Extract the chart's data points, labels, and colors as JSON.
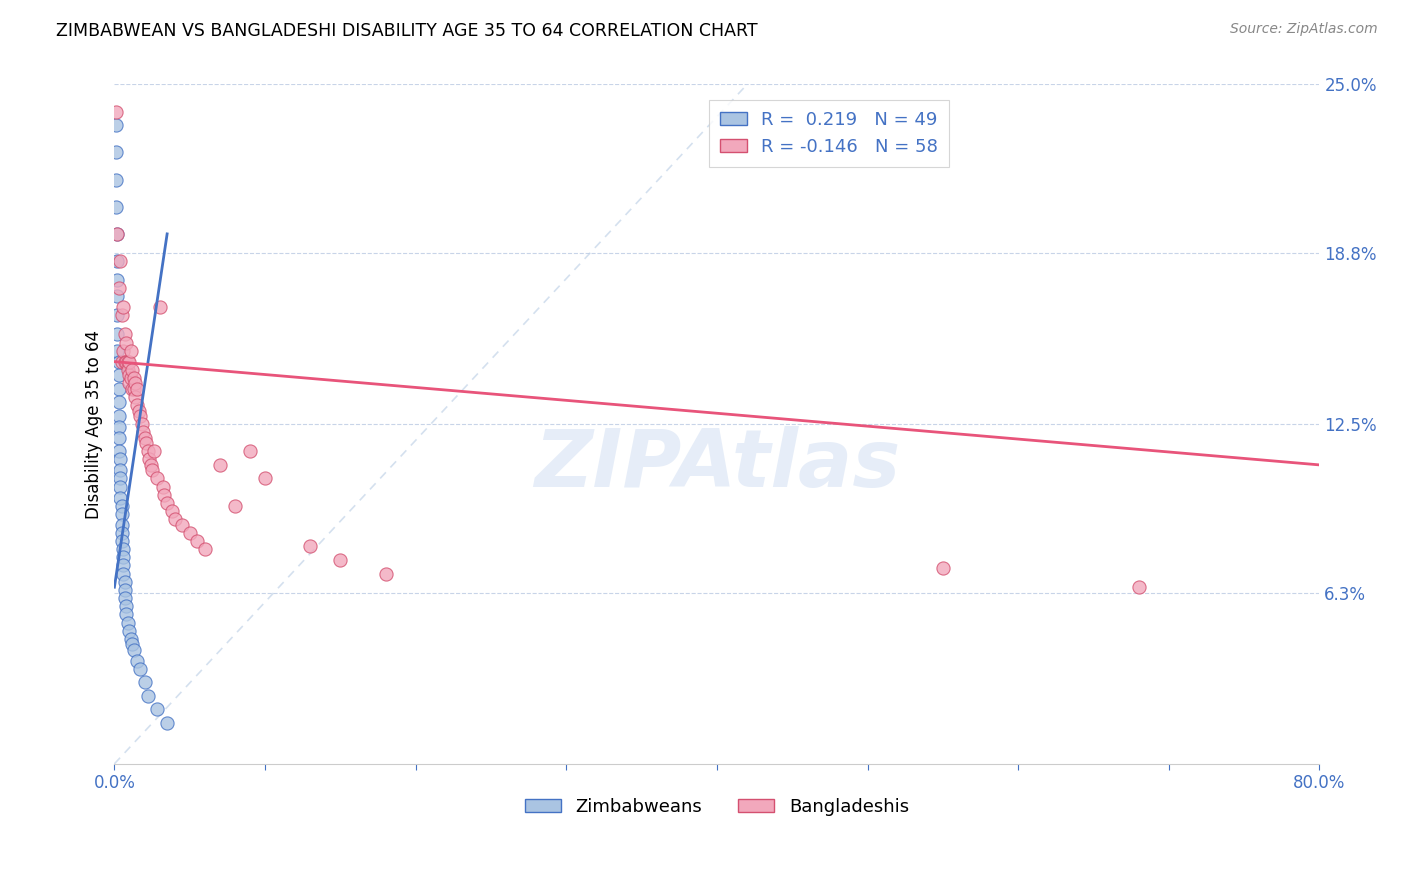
{
  "title": "ZIMBABWEAN VS BANGLADESHI DISABILITY AGE 35 TO 64 CORRELATION CHART",
  "source": "Source: ZipAtlas.com",
  "ylabel": "Disability Age 35 to 64",
  "xlim": [
    0.0,
    0.8
  ],
  "ylim": [
    0.0,
    0.25
  ],
  "ytick_labels": [
    "6.3%",
    "12.5%",
    "18.8%",
    "25.0%"
  ],
  "ytick_values": [
    0.063,
    0.125,
    0.188,
    0.25
  ],
  "xtick_values": [
    0.0,
    0.1,
    0.2,
    0.3,
    0.4,
    0.5,
    0.6,
    0.7,
    0.8
  ],
  "xtick_labels": [
    "0.0%",
    "",
    "",
    "",
    "",
    "",
    "",
    "",
    "80.0%"
  ],
  "legend_r1": "R =  0.219",
  "legend_n1": "N = 49",
  "legend_r2": "R = -0.146",
  "legend_n2": "N = 58",
  "color_zimbabwean": "#aac4e2",
  "color_bangladeshi": "#f2a8bc",
  "color_line_zimbabwean": "#4472c4",
  "color_line_bangladeshi": "#e8547a",
  "color_diagonal": "#b8cce4",
  "background_color": "#ffffff",
  "grid_color": "#c8d4e8",
  "zimbabwean_x": [
    0.001,
    0.001,
    0.001,
    0.001,
    0.002,
    0.002,
    0.002,
    0.002,
    0.002,
    0.002,
    0.002,
    0.003,
    0.003,
    0.003,
    0.003,
    0.003,
    0.003,
    0.003,
    0.003,
    0.004,
    0.004,
    0.004,
    0.004,
    0.004,
    0.005,
    0.005,
    0.005,
    0.005,
    0.005,
    0.006,
    0.006,
    0.006,
    0.006,
    0.007,
    0.007,
    0.007,
    0.008,
    0.008,
    0.009,
    0.01,
    0.011,
    0.012,
    0.013,
    0.015,
    0.017,
    0.02,
    0.022,
    0.028,
    0.035
  ],
  "zimbabwean_y": [
    0.235,
    0.225,
    0.215,
    0.205,
    0.195,
    0.185,
    0.178,
    0.172,
    0.165,
    0.158,
    0.152,
    0.148,
    0.143,
    0.138,
    0.133,
    0.128,
    0.124,
    0.12,
    0.115,
    0.112,
    0.108,
    0.105,
    0.102,
    0.098,
    0.095,
    0.092,
    0.088,
    0.085,
    0.082,
    0.079,
    0.076,
    0.073,
    0.07,
    0.067,
    0.064,
    0.061,
    0.058,
    0.055,
    0.052,
    0.049,
    0.046,
    0.044,
    0.042,
    0.038,
    0.035,
    0.03,
    0.025,
    0.02,
    0.015
  ],
  "bangladeshi_x": [
    0.001,
    0.002,
    0.003,
    0.004,
    0.005,
    0.005,
    0.006,
    0.006,
    0.007,
    0.007,
    0.008,
    0.008,
    0.009,
    0.009,
    0.01,
    0.01,
    0.01,
    0.011,
    0.011,
    0.012,
    0.012,
    0.013,
    0.013,
    0.014,
    0.014,
    0.015,
    0.015,
    0.016,
    0.017,
    0.018,
    0.019,
    0.02,
    0.021,
    0.022,
    0.023,
    0.024,
    0.025,
    0.026,
    0.028,
    0.03,
    0.032,
    0.033,
    0.035,
    0.038,
    0.04,
    0.045,
    0.05,
    0.055,
    0.06,
    0.07,
    0.08,
    0.09,
    0.1,
    0.13,
    0.15,
    0.18,
    0.55,
    0.68
  ],
  "bangladeshi_y": [
    0.24,
    0.195,
    0.175,
    0.185,
    0.148,
    0.165,
    0.152,
    0.168,
    0.148,
    0.158,
    0.148,
    0.155,
    0.148,
    0.145,
    0.143,
    0.148,
    0.14,
    0.142,
    0.152,
    0.138,
    0.145,
    0.138,
    0.142,
    0.135,
    0.14,
    0.132,
    0.138,
    0.13,
    0.128,
    0.125,
    0.122,
    0.12,
    0.118,
    0.115,
    0.112,
    0.11,
    0.108,
    0.115,
    0.105,
    0.168,
    0.102,
    0.099,
    0.096,
    0.093,
    0.09,
    0.088,
    0.085,
    0.082,
    0.079,
    0.11,
    0.095,
    0.115,
    0.105,
    0.08,
    0.075,
    0.07,
    0.072,
    0.065
  ],
  "zim_line_x": [
    0.0,
    0.035
  ],
  "zim_line_y_start": 0.065,
  "zim_line_y_end": 0.195,
  "ban_line_x": [
    0.0,
    0.8
  ],
  "ban_line_y_start": 0.148,
  "ban_line_y_end": 0.11
}
